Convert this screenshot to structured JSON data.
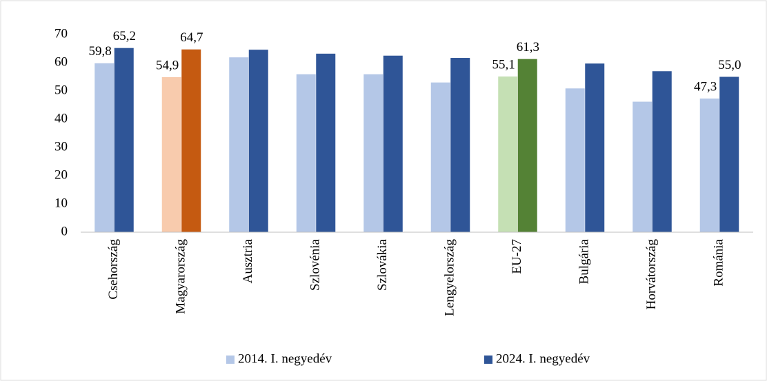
{
  "chart_data": {
    "type": "bar",
    "categories": [
      "Csehország",
      "Magyarország",
      "Ausztria",
      "Szlovénia",
      "Szlovákia",
      "Lengyelország",
      "EU-27",
      "Bulgária",
      "Horvátország",
      "Románia"
    ],
    "series": [
      {
        "name": "2014. I. negyedév",
        "color": "#b4c7e7",
        "colors": [
          "#b4c7e7",
          "#f8cbad",
          "#b4c7e7",
          "#b4c7e7",
          "#b4c7e7",
          "#b4c7e7",
          "#c5e0b4",
          "#b4c7e7",
          "#b4c7e7",
          "#b4c7e7"
        ],
        "values": [
          59.8,
          54.9,
          61.9,
          55.9,
          55.9,
          53.0,
          55.1,
          50.9,
          46.2,
          47.3
        ],
        "value_labels": [
          "59,8",
          "54,9",
          null,
          null,
          null,
          null,
          "55,1",
          null,
          null,
          "47,3"
        ]
      },
      {
        "name": "2024. I. negyedév",
        "color": "#2f5597",
        "colors": [
          "#2f5597",
          "#c55a11",
          "#2f5597",
          "#2f5597",
          "#2f5597",
          "#2f5597",
          "#548235",
          "#2f5597",
          "#2f5597",
          "#2f5597"
        ],
        "values": [
          65.2,
          64.7,
          64.6,
          63.2,
          62.5,
          61.7,
          61.3,
          59.7,
          57.0,
          55.0
        ],
        "value_labels": [
          "65,2",
          "64,7",
          null,
          null,
          null,
          null,
          "61,3",
          null,
          null,
          "55,0"
        ]
      }
    ],
    "ylim": [
      0,
      70
    ],
    "yticks": [
      0,
      10,
      20,
      30,
      40,
      50,
      60,
      70
    ],
    "grid": false,
    "legend": "bottom"
  }
}
